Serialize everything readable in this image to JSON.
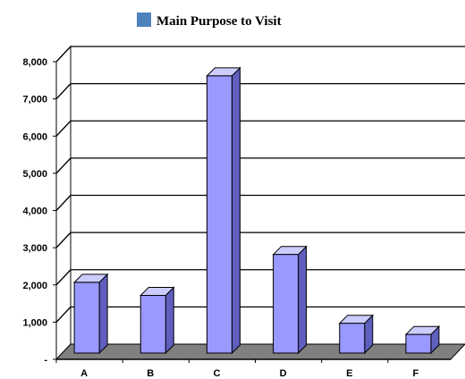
{
  "chart_data": {
    "type": "bar",
    "title": "",
    "xlabel": "",
    "ylabel": "",
    "categories": [
      "A",
      "B",
      "C",
      "D",
      "E",
      "F"
    ],
    "series": [
      {
        "name": "Main Purpose to Visit",
        "values": [
          1900,
          1550,
          7450,
          2650,
          800,
          500
        ]
      }
    ],
    "ylim": [
      0,
      8000
    ],
    "y_ticks": [
      {
        "value": 0,
        "label": "-"
      },
      {
        "value": 1000,
        "label": "1,000"
      },
      {
        "value": 2000,
        "label": "2,000"
      },
      {
        "value": 3000,
        "label": "3,000"
      },
      {
        "value": 4000,
        "label": "4,000"
      },
      {
        "value": 5000,
        "label": "5,000"
      },
      {
        "value": 6000,
        "label": "6,000"
      },
      {
        "value": 7000,
        "label": "7,000"
      },
      {
        "value": 8000,
        "label": "8,000"
      }
    ],
    "grid": true,
    "legend_position": "top",
    "colors": {
      "legend_swatch": "#4f81bd",
      "bar_front": "#9999ff",
      "bar_side": "#5f5fbf",
      "bar_top": "#ccccff",
      "floor": "#808080",
      "grid": "#000000"
    }
  }
}
